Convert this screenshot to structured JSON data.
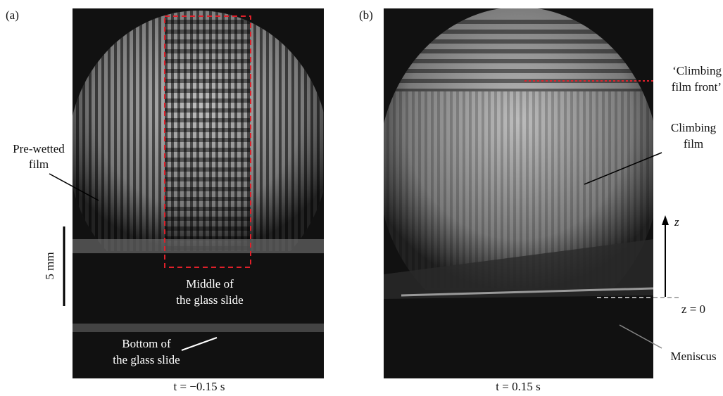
{
  "panel_a": {
    "label": "(a)",
    "prewetted": [
      "Pre-wetted",
      "film"
    ],
    "scale_bar": "5 mm",
    "middle": [
      "Middle of",
      "the glass slide"
    ],
    "bottom": [
      "Bottom of",
      "the glass slide"
    ],
    "time": "t = −0.15 s"
  },
  "panel_b": {
    "label": "(b)",
    "front": [
      "‘Climbing",
      "film front’"
    ],
    "climbing": [
      "Climbing",
      "film"
    ],
    "z_axis": "z",
    "z_zero": "z = 0",
    "meniscus": "Meniscus",
    "time": "t = 0.15 s"
  }
}
